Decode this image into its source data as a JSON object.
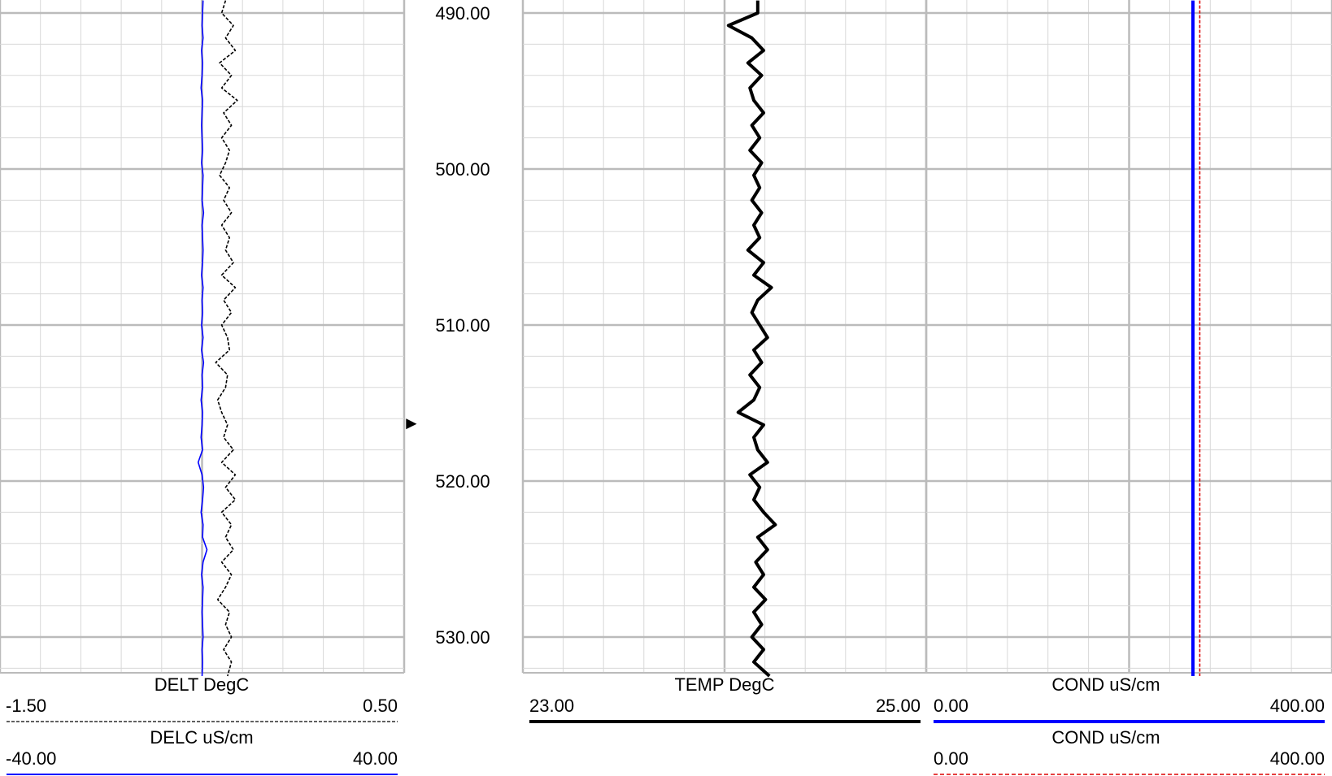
{
  "chart_data": {
    "type": "line",
    "depth_axis": {
      "labels": [
        "490.00",
        "500.00",
        "510.00",
        "520.00",
        "530.00"
      ],
      "range": [
        489.2,
        532.5
      ]
    },
    "tracks": [
      {
        "id": "left",
        "curves": [
          {
            "name": "DELT",
            "unit": "DegC",
            "header": "DELT  DegC",
            "min_label": "-1.50",
            "max_label": "0.50",
            "range": [
              -1.5,
              0.5
            ],
            "color": "#000000",
            "style": "dashed-thin",
            "points": [
              [
                489.2,
                -0.38
              ],
              [
                490.0,
                -0.4
              ],
              [
                490.8,
                -0.34
              ],
              [
                491.6,
                -0.38
              ],
              [
                492.4,
                -0.33
              ],
              [
                493.2,
                -0.41
              ],
              [
                494.0,
                -0.35
              ],
              [
                494.8,
                -0.4
              ],
              [
                495.6,
                -0.32
              ],
              [
                496.4,
                -0.39
              ],
              [
                497.2,
                -0.35
              ],
              [
                498.0,
                -0.4
              ],
              [
                498.8,
                -0.36
              ],
              [
                499.6,
                -0.38
              ],
              [
                500.4,
                -0.41
              ],
              [
                501.2,
                -0.36
              ],
              [
                502.0,
                -0.39
              ],
              [
                502.8,
                -0.35
              ],
              [
                503.6,
                -0.4
              ],
              [
                504.4,
                -0.36
              ],
              [
                505.2,
                -0.38
              ],
              [
                506.0,
                -0.34
              ],
              [
                506.8,
                -0.4
              ],
              [
                507.6,
                -0.33
              ],
              [
                508.4,
                -0.39
              ],
              [
                509.2,
                -0.35
              ],
              [
                510.0,
                -0.4
              ],
              [
                510.8,
                -0.37
              ],
              [
                511.6,
                -0.36
              ],
              [
                512.4,
                -0.43
              ],
              [
                513.2,
                -0.37
              ],
              [
                514.0,
                -0.38
              ],
              [
                514.8,
                -0.42
              ],
              [
                515.6,
                -0.4
              ],
              [
                516.4,
                -0.37
              ],
              [
                517.2,
                -0.39
              ],
              [
                518.0,
                -0.34
              ],
              [
                518.8,
                -0.4
              ],
              [
                519.6,
                -0.33
              ],
              [
                520.4,
                -0.38
              ],
              [
                521.2,
                -0.33
              ],
              [
                522.0,
                -0.4
              ],
              [
                522.8,
                -0.35
              ],
              [
                523.6,
                -0.38
              ],
              [
                524.4,
                -0.34
              ],
              [
                525.2,
                -0.4
              ],
              [
                526.0,
                -0.35
              ],
              [
                526.8,
                -0.38
              ],
              [
                527.6,
                -0.42
              ],
              [
                528.4,
                -0.36
              ],
              [
                529.2,
                -0.38
              ],
              [
                530.0,
                -0.35
              ],
              [
                530.8,
                -0.39
              ],
              [
                531.6,
                -0.35
              ],
              [
                532.5,
                -0.37
              ]
            ]
          },
          {
            "name": "DELC",
            "unit": "uS/cm",
            "header": "DELC  uS/cm",
            "min_label": "-40.00",
            "max_label": "40.00",
            "range": [
              -40,
              40
            ],
            "color": "#0000ff",
            "style": "solid-thin",
            "points": [
              [
                489.2,
                0.2
              ],
              [
                490.0,
                0.1
              ],
              [
                490.8,
                0.0
              ],
              [
                491.6,
                0.2
              ],
              [
                492.4,
                -0.1
              ],
              [
                493.2,
                0.1
              ],
              [
                494.0,
                0.0
              ],
              [
                494.8,
                -0.2
              ],
              [
                495.6,
                0.1
              ],
              [
                496.4,
                0.0
              ],
              [
                497.2,
                -0.1
              ],
              [
                498.0,
                0.0
              ],
              [
                498.8,
                0.1
              ],
              [
                499.6,
                -0.1
              ],
              [
                500.4,
                0.2
              ],
              [
                501.2,
                0.1
              ],
              [
                502.0,
                0.0
              ],
              [
                502.8,
                0.3
              ],
              [
                503.6,
                0.0
              ],
              [
                504.4,
                0.1
              ],
              [
                505.2,
                0.2
              ],
              [
                506.0,
                0.1
              ],
              [
                506.8,
                -0.1
              ],
              [
                507.6,
                0.2
              ],
              [
                508.4,
                0.0
              ],
              [
                509.2,
                0.1
              ],
              [
                510.0,
                -0.1
              ],
              [
                510.8,
                0.2
              ],
              [
                511.6,
                -0.1
              ],
              [
                512.4,
                0.3
              ],
              [
                513.2,
                0.0
              ],
              [
                514.0,
                0.1
              ],
              [
                514.8,
                -0.2
              ],
              [
                515.6,
                0.1
              ],
              [
                516.4,
                0.0
              ],
              [
                517.2,
                -0.2
              ],
              [
                518.0,
                0.1
              ],
              [
                518.8,
                -0.8
              ],
              [
                519.6,
                0.0
              ],
              [
                520.4,
                0.3
              ],
              [
                521.2,
                0.1
              ],
              [
                522.0,
                -0.2
              ],
              [
                522.8,
                0.2
              ],
              [
                523.6,
                0.1
              ],
              [
                524.4,
                1.0
              ],
              [
                525.2,
                0.2
              ],
              [
                526.0,
                -0.1
              ],
              [
                526.8,
                0.2
              ],
              [
                527.6,
                0.1
              ],
              [
                528.4,
                0.0
              ],
              [
                529.2,
                0.1
              ],
              [
                530.0,
                0.2
              ],
              [
                530.8,
                0.0
              ],
              [
                531.6,
                0.1
              ],
              [
                532.5,
                0.0
              ]
            ]
          }
        ]
      },
      {
        "id": "temp",
        "curves": [
          {
            "name": "TEMP",
            "unit": "DegC",
            "header": "TEMP  DegC",
            "min_label": "23.00",
            "max_label": "25.00",
            "range": [
              23,
              25
            ],
            "color": "#000000",
            "style": "solid-thick",
            "points": [
              [
                489.2,
                24.17
              ],
              [
                490.0,
                24.17
              ],
              [
                490.8,
                24.02
              ],
              [
                491.6,
                24.14
              ],
              [
                492.4,
                24.2
              ],
              [
                493.2,
                24.12
              ],
              [
                494.0,
                24.19
              ],
              [
                494.8,
                24.13
              ],
              [
                495.6,
                24.15
              ],
              [
                496.4,
                24.2
              ],
              [
                497.2,
                24.14
              ],
              [
                498.0,
                24.18
              ],
              [
                498.8,
                24.13
              ],
              [
                499.6,
                24.19
              ],
              [
                500.4,
                24.15
              ],
              [
                501.2,
                24.18
              ],
              [
                502.0,
                24.14
              ],
              [
                502.8,
                24.19
              ],
              [
                503.6,
                24.15
              ],
              [
                504.4,
                24.18
              ],
              [
                505.2,
                24.12
              ],
              [
                506.0,
                24.2
              ],
              [
                506.8,
                24.15
              ],
              [
                507.6,
                24.24
              ],
              [
                508.4,
                24.17
              ],
              [
                509.2,
                24.14
              ],
              [
                510.0,
                24.18
              ],
              [
                510.8,
                24.22
              ],
              [
                511.6,
                24.15
              ],
              [
                512.4,
                24.19
              ],
              [
                513.2,
                24.13
              ],
              [
                514.0,
                24.18
              ],
              [
                514.8,
                24.15
              ],
              [
                515.6,
                24.07
              ],
              [
                516.4,
                24.2
              ],
              [
                517.2,
                24.15
              ],
              [
                518.0,
                24.17
              ],
              [
                518.8,
                24.22
              ],
              [
                519.6,
                24.13
              ],
              [
                520.4,
                24.18
              ],
              [
                521.2,
                24.15
              ],
              [
                522.0,
                24.2
              ],
              [
                522.8,
                24.26
              ],
              [
                523.6,
                24.17
              ],
              [
                524.4,
                24.22
              ],
              [
                525.2,
                24.16
              ],
              [
                526.0,
                24.2
              ],
              [
                526.8,
                24.15
              ],
              [
                527.6,
                24.21
              ],
              [
                528.4,
                24.15
              ],
              [
                529.2,
                24.19
              ],
              [
                530.0,
                24.14
              ],
              [
                530.8,
                24.2
              ],
              [
                531.6,
                24.15
              ],
              [
                532.5,
                24.23
              ]
            ]
          }
        ]
      },
      {
        "id": "cond",
        "curves": [
          {
            "name": "COND",
            "unit": "uS/cm",
            "header": "COND  uS/cm",
            "min_label": "0.00",
            "max_label": "400.00",
            "range": [
              0,
              400
            ],
            "color": "#0000ff",
            "style": "solid-thick",
            "points": [
              [
                489.2,
                265.0
              ],
              [
                532.5,
                265.0
              ]
            ]
          },
          {
            "name": "COND",
            "unit": "uS/cm",
            "header": "COND  uS/cm",
            "min_label": "0.00",
            "max_label": "400.00",
            "range": [
              0,
              400
            ],
            "color": "#dd0000",
            "style": "dashed-thin",
            "points": [
              [
                489.2,
                272.0
              ],
              [
                532.5,
                272.0
              ]
            ]
          }
        ]
      }
    ],
    "marker": {
      "depth": 515.8,
      "glyph": "►"
    },
    "grid": true
  }
}
